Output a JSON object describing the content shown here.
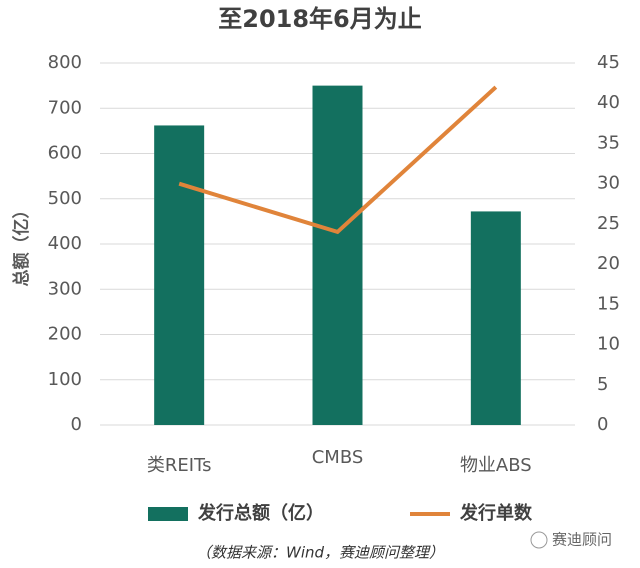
{
  "chart_data": {
    "type": "bar-line",
    "title": "至2018年6月为止",
    "y_label": "总额（亿）",
    "categories": [
      "类REITs",
      "CMBS",
      "物业ABS"
    ],
    "series": [
      {
        "name": "发行总额（亿）",
        "type": "bar",
        "color": "#13705f",
        "values": [
          662,
          750,
          472
        ]
      },
      {
        "name": "发行单数",
        "type": "line",
        "axis": "y2",
        "color": "#e0843a",
        "values": [
          30,
          24,
          42
        ]
      }
    ],
    "ylim": [
      0,
      800
    ],
    "yticks": [
      0,
      100,
      200,
      300,
      400,
      500,
      600,
      700,
      800
    ],
    "y2lim": [
      0,
      45
    ],
    "y2ticks": [
      0,
      5,
      10,
      15,
      20,
      25,
      30,
      35,
      40,
      45
    ],
    "grid": true,
    "source": "（数据来源：Wind，赛迪顾问整理）",
    "watermark": "赛迪顾问"
  }
}
